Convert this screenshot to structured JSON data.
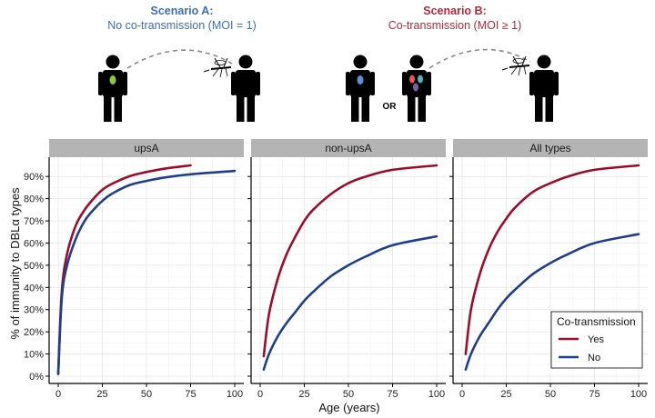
{
  "scenarios": {
    "a": {
      "title": "Scenario A:",
      "subtitle": "No co-transmission (MOI = 1)",
      "color": "#3b6fb6"
    },
    "b": {
      "title": "Scenario B:",
      "subtitle": "Co-transmission (MOI ≥ 1)",
      "color": "#b22a3a"
    },
    "or_label": "OR"
  },
  "chart_data": {
    "type": "line",
    "xlabel": "Age (years)",
    "ylabel": "% of immunity to DBLα types",
    "xlim": [
      0,
      100
    ],
    "ylim": [
      0,
      95
    ],
    "x_ticks": [
      0,
      25,
      50,
      75,
      100
    ],
    "y_ticks": [
      0,
      10,
      20,
      30,
      40,
      50,
      60,
      70,
      80,
      90
    ],
    "y_tick_labels": [
      "0%",
      "10%",
      "20%",
      "30%",
      "40%",
      "50%",
      "60%",
      "70%",
      "80%",
      "90%"
    ],
    "grid": true,
    "legend": {
      "title": "Co-transmission",
      "placement": "bottom-right",
      "entries": [
        {
          "name": "Yes",
          "color": "#9b0d2b"
        },
        {
          "name": "No",
          "color": "#1f3f8a"
        }
      ]
    },
    "panels": [
      {
        "label": "upsA",
        "series": [
          {
            "name": "Yes",
            "color": "#9b0d2b",
            "x": [
              0,
              2,
              5,
              10,
              15,
              20,
              25,
              30,
              40,
              50,
              60,
              75
            ],
            "y": [
              1,
              38,
              55,
              68,
              75,
              80,
              84,
              86.5,
              90,
              92,
              93.5,
              95
            ]
          },
          {
            "name": "No",
            "color": "#1f3f8a",
            "x": [
              0,
              2,
              5,
              10,
              15,
              20,
              25,
              30,
              40,
              50,
              60,
              75,
              100
            ],
            "y": [
              1,
              35,
              50,
              62,
              70,
              75,
              79,
              82,
              86,
              88,
              89.5,
              91,
              92.5
            ]
          }
        ]
      },
      {
        "label": "non-upsA",
        "series": [
          {
            "name": "Yes",
            "color": "#9b0d2b",
            "x": [
              2,
              5,
              10,
              15,
              20,
              25,
              30,
              40,
              50,
              60,
              75,
              100
            ],
            "y": [
              9,
              28,
              44,
              55,
              63,
              70,
              75,
              82,
              87,
              90,
              93,
              95
            ]
          },
          {
            "name": "No",
            "color": "#1f3f8a",
            "x": [
              2,
              5,
              10,
              15,
              20,
              25,
              30,
              40,
              50,
              60,
              75,
              100
            ],
            "y": [
              3,
              10,
              18,
              24,
              29,
              34,
              38,
              45,
              50,
              54,
              59,
              63
            ]
          }
        ]
      },
      {
        "label": "All types",
        "series": [
          {
            "name": "Yes",
            "color": "#9b0d2b",
            "x": [
              2,
              5,
              10,
              15,
              20,
              25,
              30,
              40,
              50,
              60,
              75,
              100
            ],
            "y": [
              10,
              30,
              46,
              57,
              65,
              71,
              76,
              83,
              87,
              90,
              93,
              95
            ]
          },
          {
            "name": "No",
            "color": "#1f3f8a",
            "x": [
              2,
              5,
              10,
              15,
              20,
              25,
              30,
              40,
              50,
              60,
              75,
              100
            ],
            "y": [
              3,
              10,
              18,
              24,
              30,
              35,
              39,
              46,
              51,
              55,
              60,
              64
            ]
          }
        ]
      }
    ]
  }
}
